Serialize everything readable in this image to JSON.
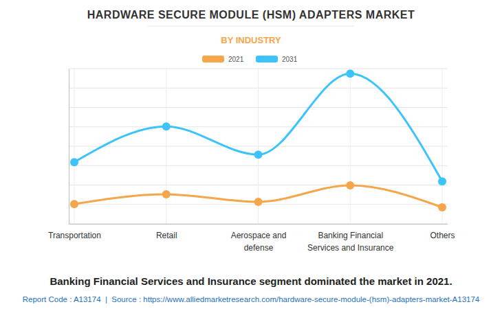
{
  "chart_data": {
    "type": "line",
    "title": "HARDWARE SECURE MODULE (HSM) ADAPTERS MARKET",
    "subtitle": "BY INDUSTRY",
    "caption": "Banking Financial Services and Insurance segment dominated the market in 2021.",
    "source": "Report Code : A13174  |  Source : https://www.alliedmarketresearch.com/hardware-secure-module-(hsm)-adapters-market-A13174",
    "categories": [
      "Transportation",
      "Retail",
      "Aerospace and\ndefense",
      "Banking Financial\nServices and Insurance",
      "Others"
    ],
    "series": [
      {
        "name": "2021",
        "color": "#f5a54a",
        "values": [
          1.02,
          1.52,
          1.13,
          1.98,
          0.85
        ],
        "marker": "circle"
      },
      {
        "name": "2031",
        "color": "#3cc3fb",
        "values": [
          3.18,
          5.02,
          3.57,
          7.74,
          2.19
        ],
        "marker": "circle"
      }
    ],
    "ylim": [
      0,
      8
    ],
    "yticks": [
      0,
      1,
      2,
      3,
      4,
      5,
      6,
      7,
      8
    ],
    "grid": true,
    "legend": "top",
    "tick_labels": "x"
  }
}
